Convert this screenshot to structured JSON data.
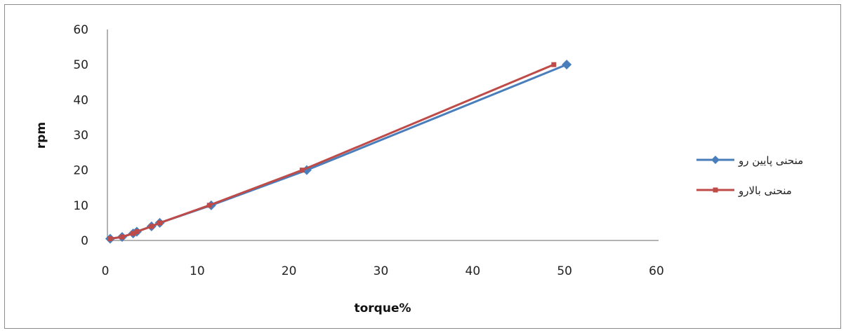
{
  "chart_data": {
    "type": "line",
    "xlabel": "torque%",
    "ylabel": "rpm",
    "xlim": [
      0,
      60
    ],
    "ylim": [
      0,
      60
    ],
    "x_ticks": [
      "0",
      "10",
      "20",
      "30",
      "40",
      "50",
      "60"
    ],
    "y_ticks": [
      "0",
      "10",
      "20",
      "30",
      "40",
      "50",
      "60"
    ],
    "grid": false,
    "legend_position": "right",
    "series": [
      {
        "name": "منحنی پایین رو",
        "color": "#4a7ebb",
        "marker": "diamond",
        "x": [
          0.3,
          1.6,
          2.8,
          3.2,
          4.8,
          5.7,
          11.3,
          21.7,
          50.0
        ],
        "y": [
          0.5,
          1.0,
          2.0,
          2.5,
          4.0,
          5.0,
          10.0,
          20.0,
          50.0
        ]
      },
      {
        "name": "منحنی بالارو",
        "color": "#be4b48",
        "marker": "square",
        "x": [
          0.3,
          1.6,
          2.8,
          3.2,
          4.8,
          5.7,
          11.1,
          21.2,
          48.6
        ],
        "y": [
          0.5,
          1.0,
          2.0,
          2.5,
          4.0,
          5.0,
          10.0,
          20.0,
          50.0
        ]
      }
    ]
  }
}
